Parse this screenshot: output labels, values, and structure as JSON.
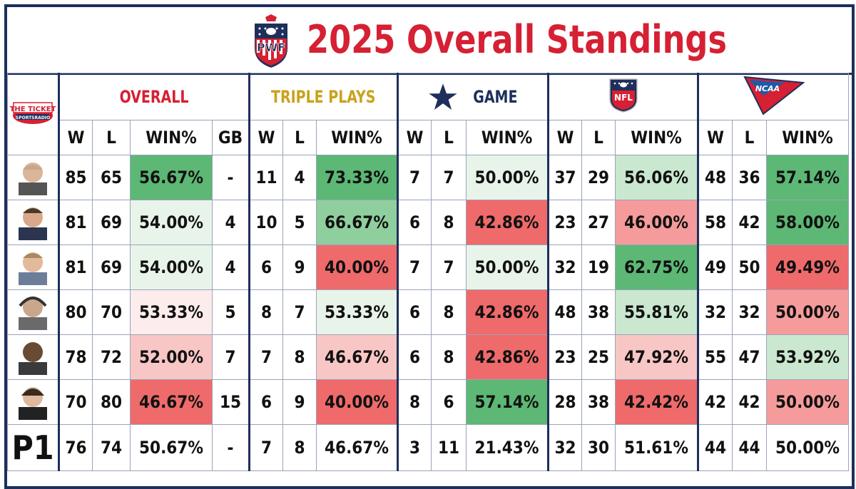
{
  "title": "2025 Overall Standings",
  "logo_text": "PWF",
  "ticket_logo": "THE TICKET SPORTSRADIO",
  "sections": {
    "overall": "OVERALL",
    "triple": "TRIPLE PLAYS",
    "game": "GAME",
    "nfl_logo_text": "NFL",
    "ncaa_logo_text": "NCAA"
  },
  "col_headers": {
    "w": "W",
    "l": "L",
    "win": "WIN%",
    "gb": "GB"
  },
  "rows": [
    {
      "ow": "85",
      "ol": "65",
      "opct": "56.67%",
      "gb": "-",
      "tw": "11",
      "tl": "4",
      "tpct": "73.33%",
      "gw": "7",
      "gl": "7",
      "gpct": "50.00%",
      "nw": "37",
      "nl": "29",
      "npct": "56.06%",
      "cw": "48",
      "cl": "36",
      "cpct": "57.14%"
    },
    {
      "ow": "81",
      "ol": "69",
      "opct": "54.00%",
      "gb": "4",
      "tw": "10",
      "tl": "5",
      "tpct": "66.67%",
      "gw": "6",
      "gl": "8",
      "gpct": "42.86%",
      "nw": "23",
      "nl": "27",
      "npct": "46.00%",
      "cw": "58",
      "cl": "42",
      "cpct": "58.00%"
    },
    {
      "ow": "81",
      "ol": "69",
      "opct": "54.00%",
      "gb": "4",
      "tw": "6",
      "tl": "9",
      "tpct": "40.00%",
      "gw": "7",
      "gl": "7",
      "gpct": "50.00%",
      "nw": "32",
      "nl": "19",
      "npct": "62.75%",
      "cw": "49",
      "cl": "50",
      "cpct": "49.49%"
    },
    {
      "ow": "80",
      "ol": "70",
      "opct": "53.33%",
      "gb": "5",
      "tw": "8",
      "tl": "7",
      "tpct": "53.33%",
      "gw": "6",
      "gl": "8",
      "gpct": "42.86%",
      "nw": "48",
      "nl": "38",
      "npct": "55.81%",
      "cw": "32",
      "cl": "32",
      "cpct": "50.00%"
    },
    {
      "ow": "78",
      "ol": "72",
      "opct": "52.00%",
      "gb": "7",
      "tw": "7",
      "tl": "8",
      "tpct": "46.67%",
      "gw": "6",
      "gl": "8",
      "gpct": "42.86%",
      "nw": "23",
      "nl": "25",
      "npct": "47.92%",
      "cw": "55",
      "cl": "47",
      "cpct": "53.92%"
    },
    {
      "ow": "70",
      "ol": "80",
      "opct": "46.67%",
      "gb": "15",
      "tw": "6",
      "tl": "9",
      "tpct": "40.00%",
      "gw": "8",
      "gl": "6",
      "gpct": "57.14%",
      "nw": "28",
      "nl": "38",
      "npct": "42.42%",
      "cw": "42",
      "cl": "42",
      "cpct": "50.00%"
    }
  ],
  "p1": {
    "label": "P1",
    "ow": "76",
    "ol": "74",
    "opct": "50.67%",
    "gb": "-",
    "tw": "7",
    "tl": "8",
    "tpct": "46.67%",
    "gw": "3",
    "gl": "11",
    "gpct": "21.43%",
    "nw": "32",
    "nl": "30",
    "npct": "51.61%",
    "cw": "44",
    "cl": "44",
    "cpct": "50.00%"
  },
  "colors": {
    "title": "#d62033",
    "border": "#1e2f5c",
    "triple": "#c9a21c"
  }
}
